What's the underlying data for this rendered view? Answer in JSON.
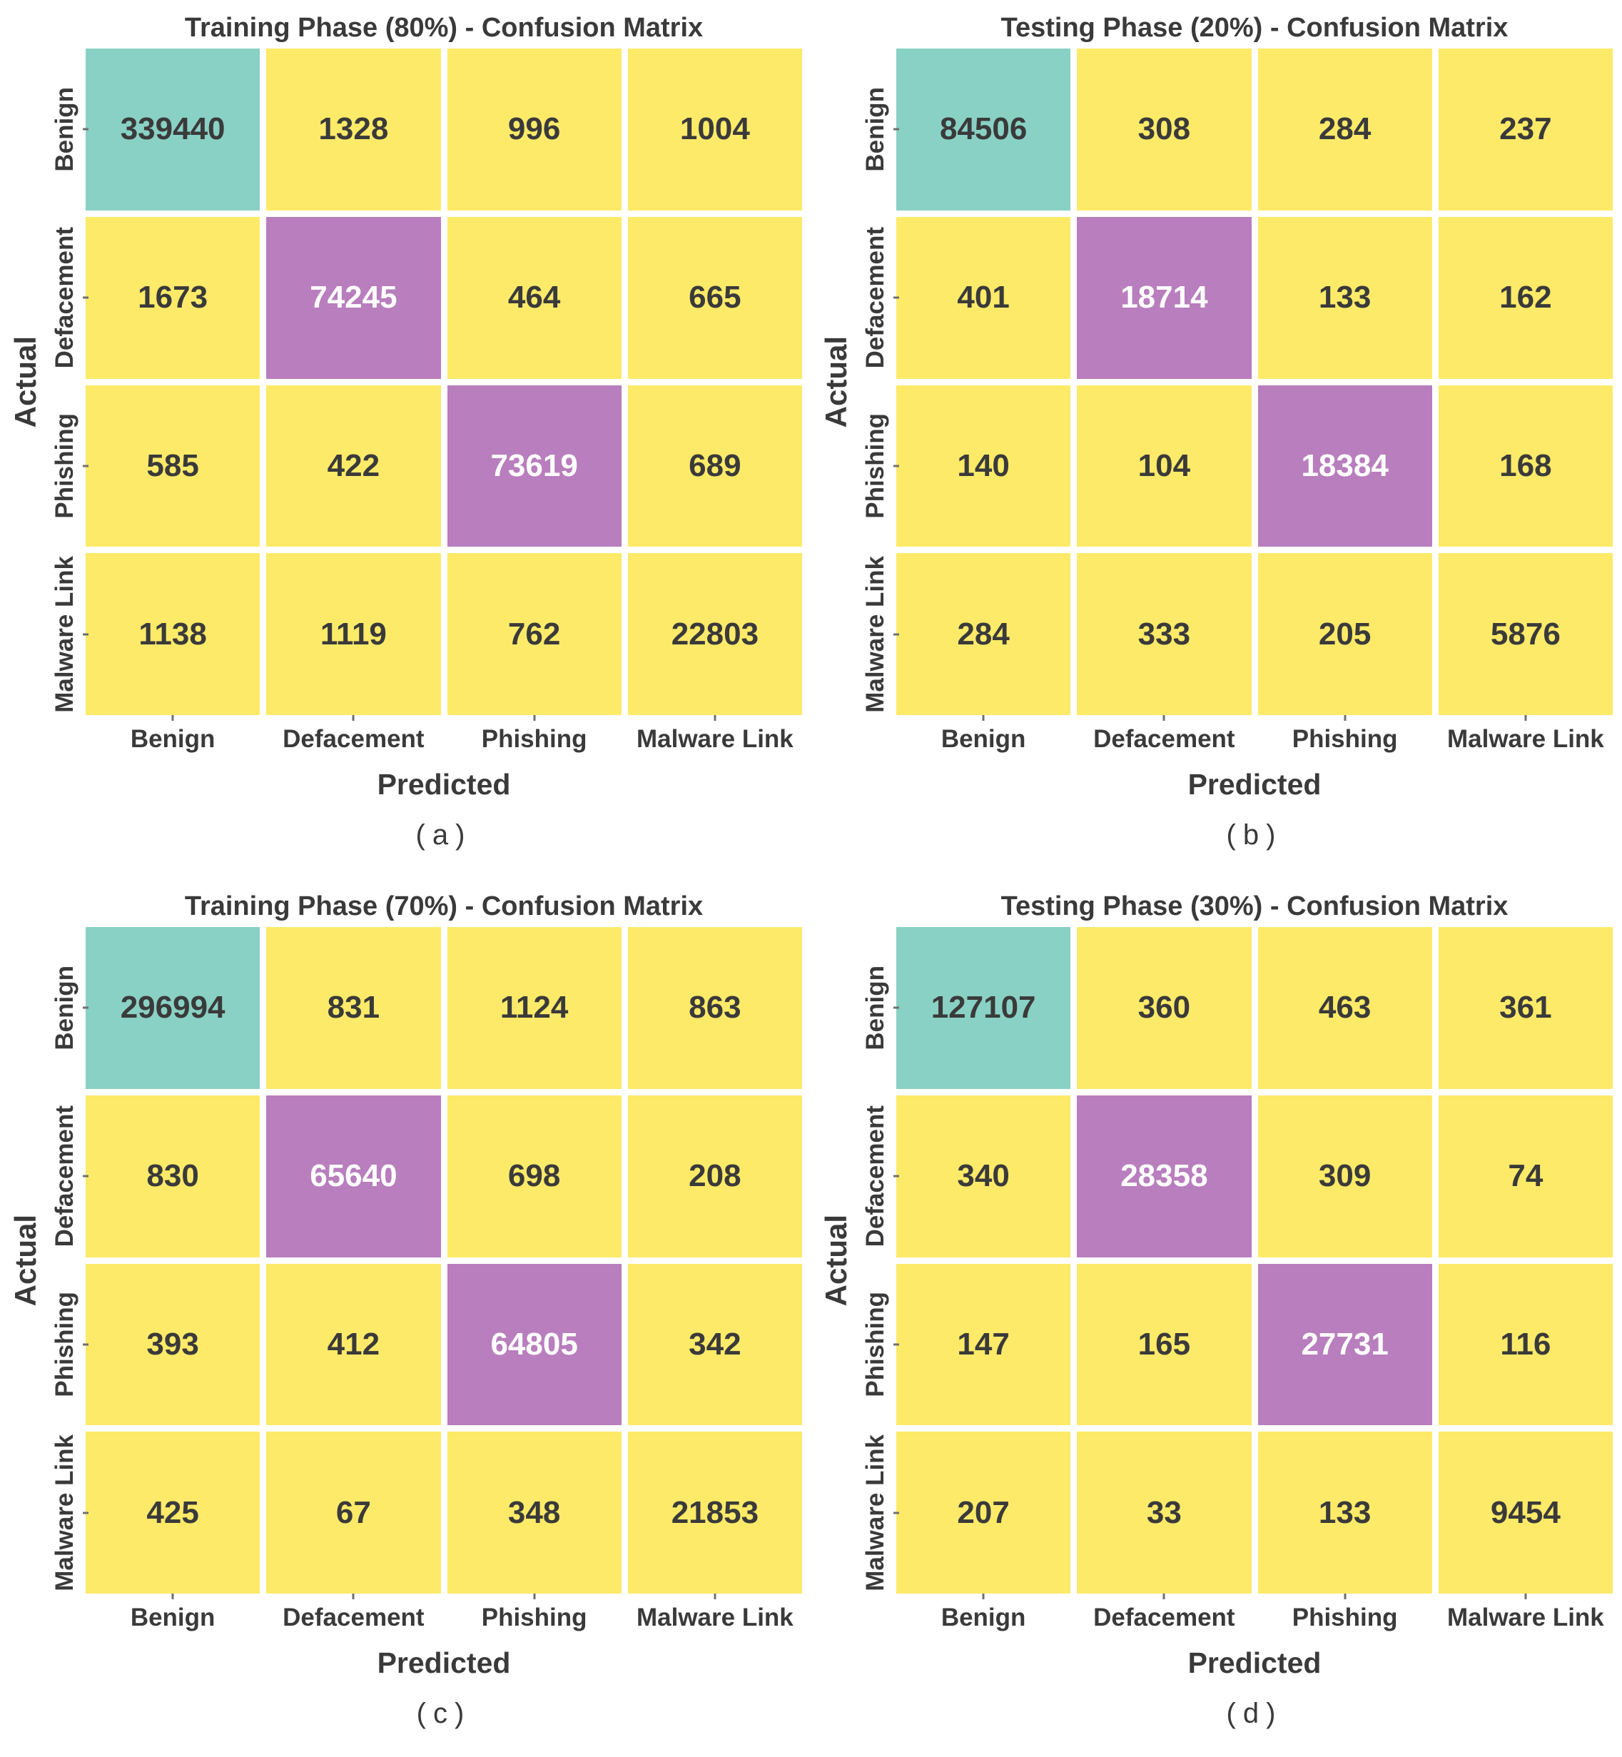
{
  "page": {
    "background": "#ffffff",
    "text_color": "#3a3a3a"
  },
  "colors": {
    "diag_benign_teal": "#89d1c4",
    "diag_purple": "#b87ebd",
    "off_diag_yellow": "#fdea69",
    "cell_text_dark": "#3a3a3a",
    "cell_text_light": "#ffffff",
    "tick_mark": "#6f6f6f"
  },
  "chart_data": [
    {
      "type": "heatmap",
      "title": "Training Phase (80%) - Confusion Matrix",
      "caption": "(a)",
      "xlabel": "Predicted",
      "ylabel": "Actual",
      "x_categories": [
        "Benign",
        "Defacement",
        "Phishing",
        "Malware Link"
      ],
      "y_categories": [
        "Benign",
        "Defacement",
        "Phishing",
        "Malware Link"
      ],
      "values": [
        [
          339440,
          1328,
          996,
          1004
        ],
        [
          1673,
          74245,
          464,
          665
        ],
        [
          585,
          422,
          73619,
          689
        ],
        [
          1138,
          1119,
          762,
          22803
        ]
      ],
      "cell_colors": [
        [
          "teal",
          "yellow",
          "yellow",
          "yellow"
        ],
        [
          "yellow",
          "purple",
          "yellow",
          "yellow"
        ],
        [
          "yellow",
          "yellow",
          "purple",
          "yellow"
        ],
        [
          "yellow",
          "yellow",
          "yellow",
          "yellow"
        ]
      ],
      "legend": "none",
      "grid": "white-gaps"
    },
    {
      "type": "heatmap",
      "title": "Testing Phase (20%) - Confusion Matrix",
      "caption": "(b)",
      "xlabel": "Predicted",
      "ylabel": "Actual",
      "x_categories": [
        "Benign",
        "Defacement",
        "Phishing",
        "Malware Link"
      ],
      "y_categories": [
        "Benign",
        "Defacement",
        "Phishing",
        "Malware Link"
      ],
      "values": [
        [
          84506,
          308,
          284,
          237
        ],
        [
          401,
          18714,
          133,
          162
        ],
        [
          140,
          104,
          18384,
          168
        ],
        [
          284,
          333,
          205,
          5876
        ]
      ],
      "cell_colors": [
        [
          "teal",
          "yellow",
          "yellow",
          "yellow"
        ],
        [
          "yellow",
          "purple",
          "yellow",
          "yellow"
        ],
        [
          "yellow",
          "yellow",
          "purple",
          "yellow"
        ],
        [
          "yellow",
          "yellow",
          "yellow",
          "yellow"
        ]
      ],
      "legend": "none",
      "grid": "white-gaps"
    },
    {
      "type": "heatmap",
      "title": "Training Phase (70%) - Confusion Matrix",
      "caption": "(c)",
      "xlabel": "Predicted",
      "ylabel": "Actual",
      "x_categories": [
        "Benign",
        "Defacement",
        "Phishing",
        "Malware Link"
      ],
      "y_categories": [
        "Benign",
        "Defacement",
        "Phishing",
        "Malware Link"
      ],
      "values": [
        [
          296994,
          831,
          1124,
          863
        ],
        [
          830,
          65640,
          698,
          208
        ],
        [
          393,
          412,
          64805,
          342
        ],
        [
          425,
          67,
          348,
          21853
        ]
      ],
      "cell_colors": [
        [
          "teal",
          "yellow",
          "yellow",
          "yellow"
        ],
        [
          "yellow",
          "purple",
          "yellow",
          "yellow"
        ],
        [
          "yellow",
          "yellow",
          "purple",
          "yellow"
        ],
        [
          "yellow",
          "yellow",
          "yellow",
          "yellow"
        ]
      ],
      "legend": "none",
      "grid": "white-gaps"
    },
    {
      "type": "heatmap",
      "title": "Testing Phase (30%) - Confusion Matrix",
      "caption": "(d)",
      "xlabel": "Predicted",
      "ylabel": "Actual",
      "x_categories": [
        "Benign",
        "Defacement",
        "Phishing",
        "Malware Link"
      ],
      "y_categories": [
        "Benign",
        "Defacement",
        "Phishing",
        "Malware Link"
      ],
      "values": [
        [
          127107,
          360,
          463,
          361
        ],
        [
          340,
          28358,
          309,
          74
        ],
        [
          147,
          165,
          27731,
          116
        ],
        [
          207,
          33,
          133,
          9454
        ]
      ],
      "cell_colors": [
        [
          "teal",
          "yellow",
          "yellow",
          "yellow"
        ],
        [
          "yellow",
          "purple",
          "yellow",
          "yellow"
        ],
        [
          "yellow",
          "yellow",
          "purple",
          "yellow"
        ],
        [
          "yellow",
          "yellow",
          "yellow",
          "yellow"
        ]
      ],
      "legend": "none",
      "grid": "white-gaps"
    }
  ]
}
